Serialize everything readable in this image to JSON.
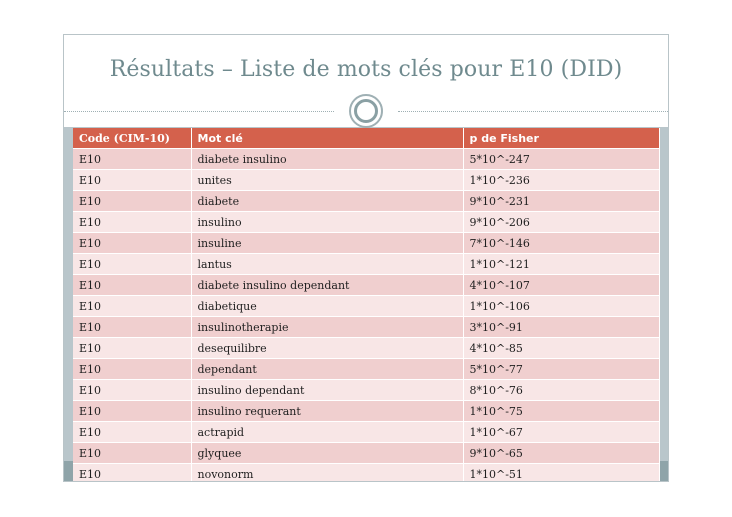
{
  "slide": {
    "title": "Résultats – Liste de mots clés pour E10 (DID)"
  },
  "table": {
    "headers": [
      "Code (CIM-10)",
      "Mot clé",
      "p de Fisher"
    ],
    "rows": [
      [
        "E10",
        "diabete insulino",
        "5*10^-247"
      ],
      [
        "E10",
        "unites",
        "1*10^-236"
      ],
      [
        "E10",
        "diabete",
        "9*10^-231"
      ],
      [
        "E10",
        "insulino",
        "9*10^-206"
      ],
      [
        "E10",
        "insuline",
        "7*10^-146"
      ],
      [
        "E10",
        "lantus",
        "1*10^-121"
      ],
      [
        "E10",
        "diabete insulino dependant",
        "4*10^-107"
      ],
      [
        "E10",
        "diabetique",
        "1*10^-106"
      ],
      [
        "E10",
        "insulinotherapie",
        "3*10^-91"
      ],
      [
        "E10",
        "desequilibre",
        "4*10^-85"
      ],
      [
        "E10",
        "dependant",
        "5*10^-77"
      ],
      [
        "E10",
        "insulino dependant",
        "8*10^-76"
      ],
      [
        "E10",
        "insulino requerant",
        "1*10^-75"
      ],
      [
        "E10",
        "actrapid",
        "1*10^-67"
      ],
      [
        "E10",
        "glyquee",
        "9*10^-65"
      ],
      [
        "E10",
        "novonorm",
        "1*10^-51"
      ]
    ]
  }
}
